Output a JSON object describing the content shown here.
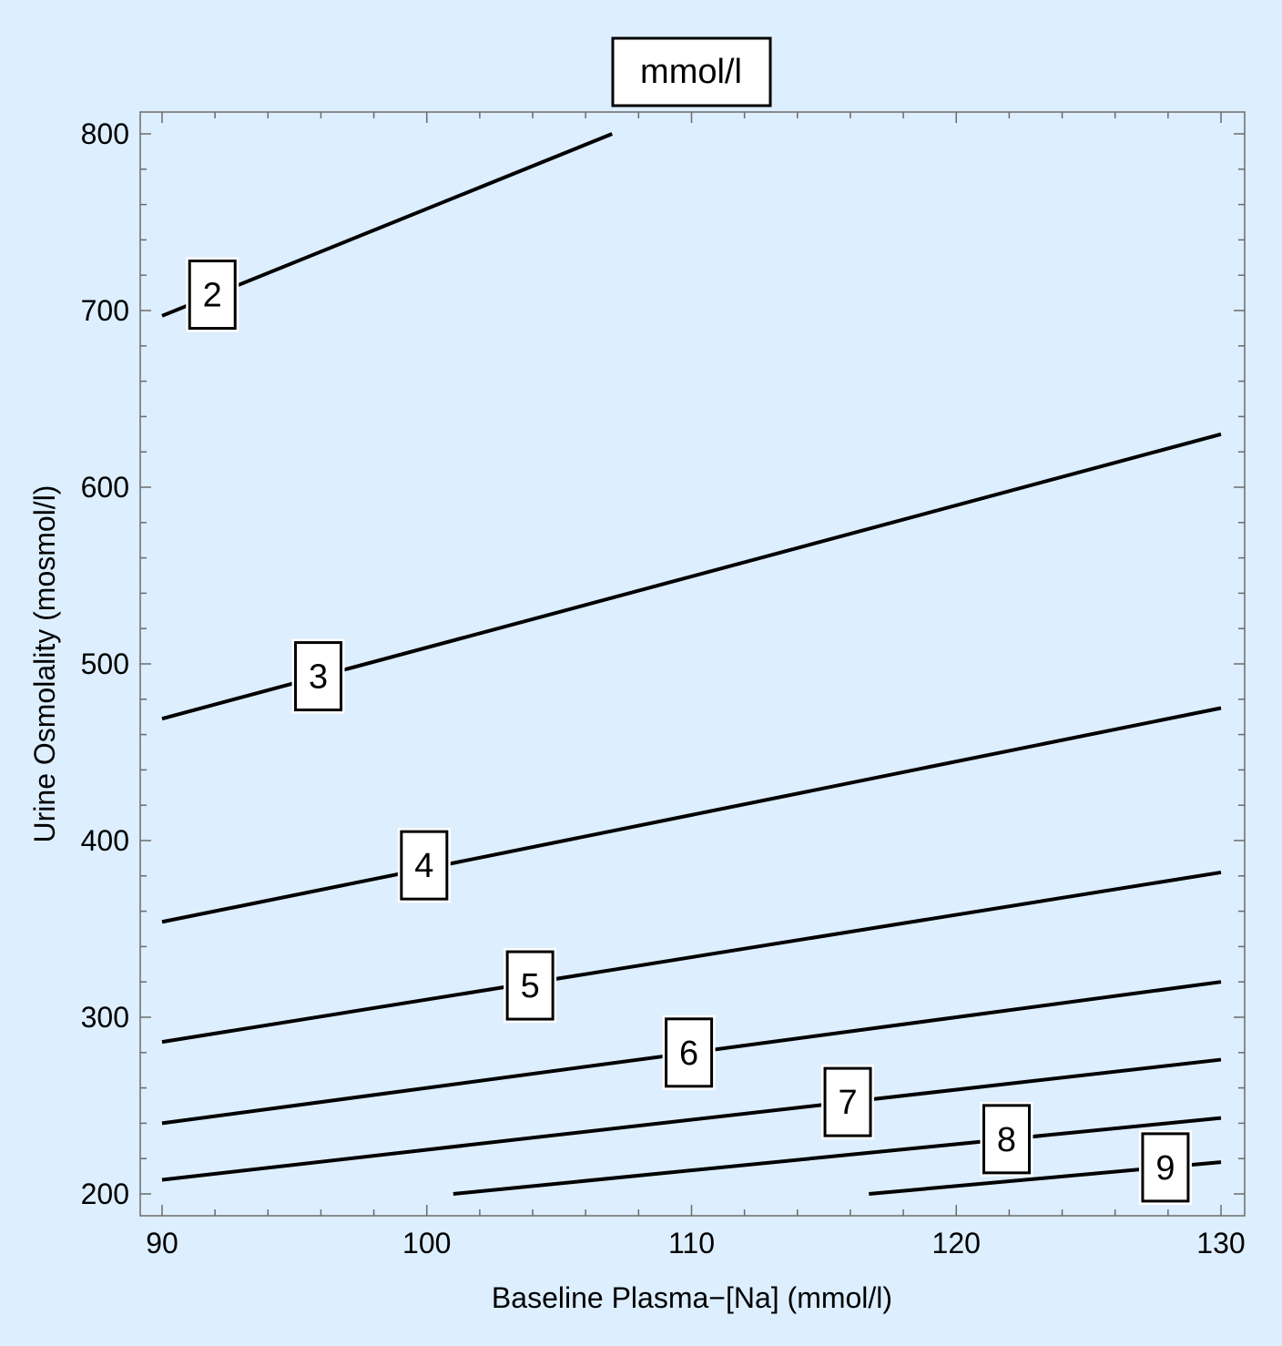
{
  "chart_data": {
    "type": "line",
    "title": "mmol/l",
    "xlabel": "Baseline Plasma−[Na] (mmol/l)",
    "ylabel": "Urine Osmolality (mosmol/l)",
    "xlim": [
      90,
      130
    ],
    "ylim": [
      200,
      800
    ],
    "x_ticks": [
      "90",
      "100",
      "110",
      "120",
      "130"
    ],
    "y_ticks": [
      "200",
      "300",
      "400",
      "500",
      "600",
      "700",
      "800"
    ],
    "grid": false,
    "series": [
      {
        "name": "2",
        "points": [
          [
            90,
            697
          ],
          [
            107,
            800
          ]
        ],
        "label_at": [
          91.9,
          709
        ]
      },
      {
        "name": "3",
        "points": [
          [
            90,
            469
          ],
          [
            130,
            630
          ]
        ],
        "label_at": [
          95.9,
          493
        ]
      },
      {
        "name": "4",
        "points": [
          [
            90,
            354
          ],
          [
            130,
            475
          ]
        ],
        "label_at": [
          99.9,
          386
        ]
      },
      {
        "name": "5",
        "points": [
          [
            90,
            286
          ],
          [
            130,
            382
          ]
        ],
        "label_at": [
          103.9,
          318
        ]
      },
      {
        "name": "6",
        "points": [
          [
            90,
            240
          ],
          [
            130,
            320
          ]
        ],
        "label_at": [
          109.9,
          280
        ]
      },
      {
        "name": "7",
        "points": [
          [
            90,
            208
          ],
          [
            130,
            276
          ]
        ],
        "label_at": [
          115.9,
          252
        ]
      },
      {
        "name": "8",
        "points": [
          [
            101,
            200
          ],
          [
            130,
            243
          ]
        ],
        "label_at": [
          121.9,
          231
        ]
      },
      {
        "name": "9",
        "points": [
          [
            116.7,
            200
          ],
          [
            130,
            218
          ]
        ],
        "label_at": [
          127.9,
          215
        ]
      }
    ]
  }
}
